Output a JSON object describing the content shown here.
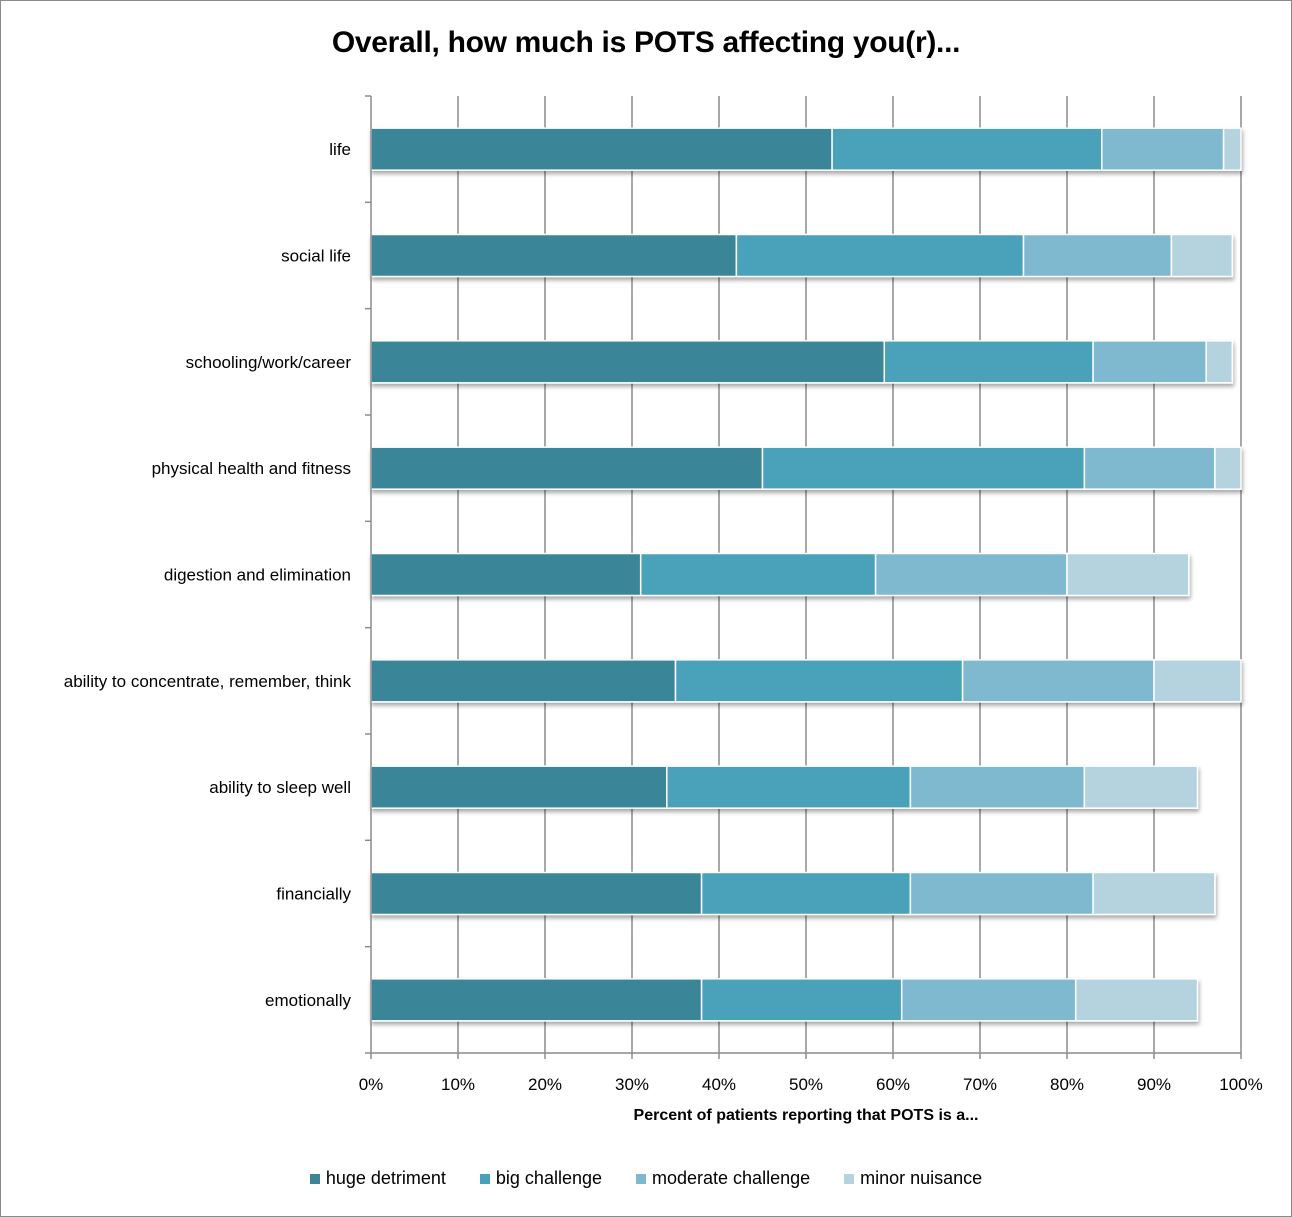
{
  "chart_data": {
    "type": "bar",
    "orientation": "horizontal",
    "stacked": true,
    "title": "Overall, how much is POTS affecting you(r)...",
    "xlabel": "Percent of patients reporting that POTS is a...",
    "ylabel": "",
    "xlim": [
      0,
      100
    ],
    "x_ticks": [
      "0%",
      "10%",
      "20%",
      "30%",
      "40%",
      "50%",
      "60%",
      "70%",
      "80%",
      "90%",
      "100%"
    ],
    "grid": "vertical",
    "legend_position": "bottom",
    "categories": [
      "life",
      "social life",
      "schooling/work/career",
      "physical health and fitness",
      "digestion and elimination",
      "ability to concentrate, remember, think",
      "ability to sleep well",
      "financially",
      "emotionally"
    ],
    "series": [
      {
        "name": "huge detriment",
        "color": "#3A8599",
        "values": [
          53,
          42,
          59,
          45,
          31,
          35,
          34,
          38,
          38
        ]
      },
      {
        "name": "big challenge",
        "color": "#48A1BA",
        "values": [
          31,
          33,
          24,
          37,
          27,
          33,
          28,
          24,
          23
        ]
      },
      {
        "name": "moderate challenge",
        "color": "#7EB9CF",
        "values": [
          14,
          17,
          13,
          15,
          22,
          22,
          20,
          21,
          20
        ]
      },
      {
        "name": "minor nuisance",
        "color": "#B5D3DF",
        "values": [
          2,
          7,
          3,
          3,
          14,
          10,
          13,
          14,
          14
        ]
      }
    ]
  }
}
